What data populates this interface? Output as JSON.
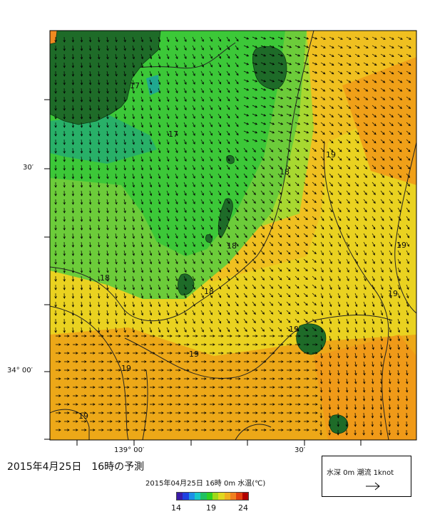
{
  "map": {
    "latitude_labels": [
      "30′",
      "34° 00′"
    ],
    "longitude_labels": [
      "139° 00′",
      "30′"
    ],
    "contour_labels": [
      "17",
      "17",
      "18",
      "18",
      "18",
      "18",
      "19",
      "19",
      "19",
      "19",
      "19",
      "19",
      "19"
    ],
    "current_arrow_color": "#000000",
    "land_color": "#1e6b28"
  },
  "title": "2015年4月25日　16時の予測",
  "caption": "2015年04月25日 16時 0m 水温(℃)",
  "legend": {
    "text": "水深 0m 潮流 1knot",
    "arrow_icon": "right-arrow-icon"
  },
  "colorbar": {
    "ticks": [
      "14",
      "19",
      "24"
    ],
    "colors": [
      "#3a1aa8",
      "#1e40e0",
      "#1c90e8",
      "#18c8c8",
      "#20c060",
      "#30d020",
      "#a0d818",
      "#e0d820",
      "#f0b020",
      "#f08020",
      "#e04010",
      "#b00000"
    ]
  }
}
